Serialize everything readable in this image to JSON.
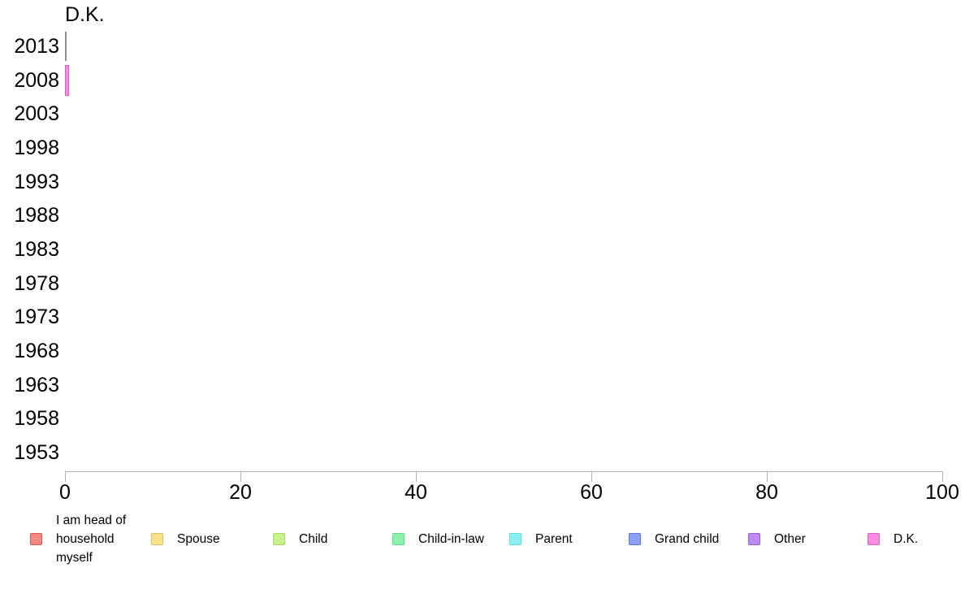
{
  "chart_data": {
    "type": "bar",
    "orientation": "horizontal",
    "title": "D.K.",
    "categories": [
      "2013",
      "2008",
      "2003",
      "1998",
      "1993",
      "1988",
      "1983",
      "1978",
      "1973",
      "1968",
      "1963",
      "1958",
      "1953"
    ],
    "values": [
      0,
      0.5,
      null,
      null,
      null,
      null,
      null,
      null,
      null,
      null,
      null,
      null,
      null
    ],
    "xlim": [
      0,
      100
    ],
    "xticks": [
      0,
      20,
      40,
      60,
      80,
      100
    ],
    "grid": false,
    "legend_position": "bottom",
    "bar_color": "#F78DE0",
    "bar_border_color": "#D95FC4",
    "zero_value_line_color": "#8F8F8F",
    "axis_color": "#B3B3B3",
    "legend": [
      {
        "label": "I am head of household myself",
        "color": "#F28B86",
        "border": "#E0554E"
      },
      {
        "label": "Spouse",
        "color": "#F6E28F",
        "border": "#DEC05A"
      },
      {
        "label": "Child",
        "color": "#C9F28C",
        "border": "#A3DE5A"
      },
      {
        "label": "Child-in-law",
        "color": "#8DF2AD",
        "border": "#5ADE85"
      },
      {
        "label": "Parent",
        "color": "#8DF0F0",
        "border": "#5ADEDE"
      },
      {
        "label": "Grand child",
        "color": "#8DA0F2",
        "border": "#5A74DE"
      },
      {
        "label": "Other",
        "color": "#BD8DF2",
        "border": "#995ADE"
      },
      {
        "label": "D.K.",
        "color": "#F78DE0",
        "border": "#DE5AC4"
      }
    ]
  }
}
